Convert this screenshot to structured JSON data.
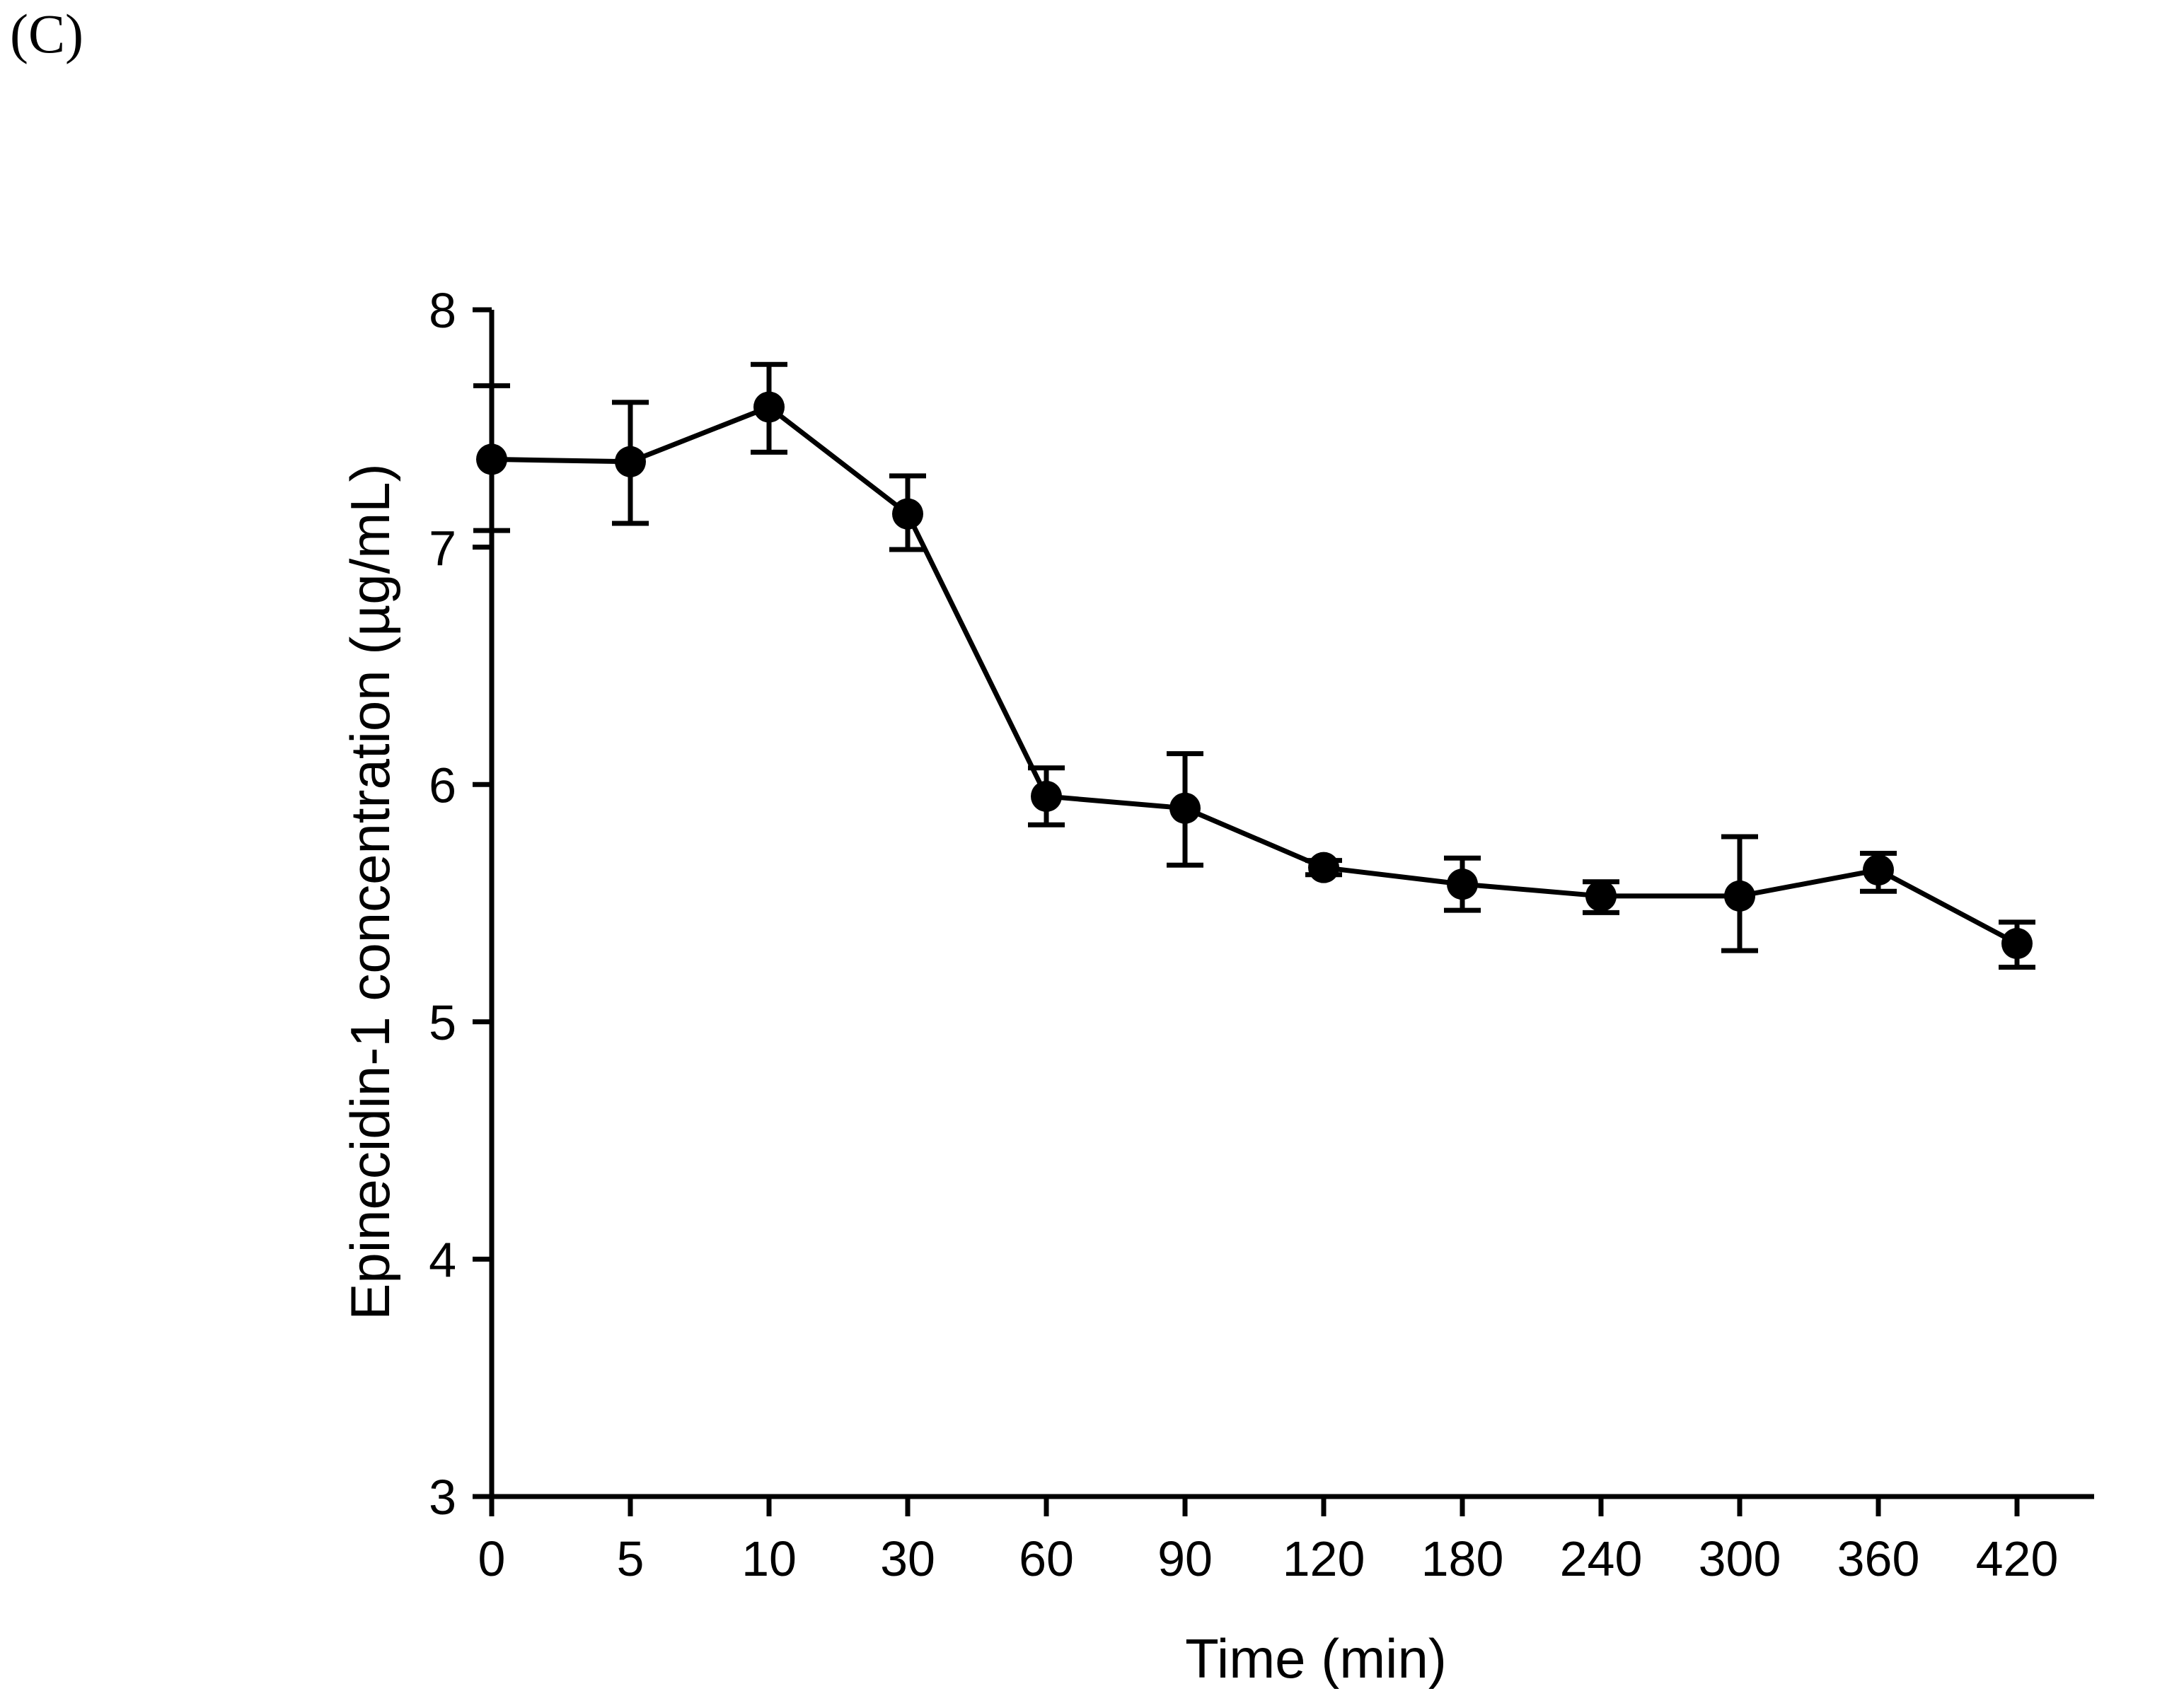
{
  "panel_label": "(C)",
  "colors": {
    "foreground": "#000000",
    "background": "#ffffff"
  },
  "chart_data": {
    "type": "line",
    "title": "",
    "xlabel": "Time (min)",
    "ylabel": "Epinecidin-1 concentration (µg/mL)",
    "x_tick_labels": [
      "0",
      "5",
      "10",
      "30",
      "60",
      "90",
      "120",
      "180",
      "240",
      "300",
      "360",
      "420"
    ],
    "categories": [
      0,
      5,
      10,
      30,
      60,
      90,
      120,
      180,
      240,
      300,
      360,
      420
    ],
    "series": [
      {
        "name": "Epinecidin-1 concentration",
        "marker": "filled-circle",
        "color": "#000000",
        "values": [
          7.37,
          7.36,
          7.59,
          7.14,
          5.95,
          5.9,
          5.65,
          5.58,
          5.53,
          5.53,
          5.64,
          5.33
        ],
        "error_up": [
          0.31,
          0.25,
          0.18,
          0.16,
          0.12,
          0.23,
          0.03,
          0.11,
          0.06,
          0.25,
          0.07,
          0.09
        ],
        "error_down": [
          0.3,
          0.26,
          0.19,
          0.15,
          0.12,
          0.24,
          0.03,
          0.11,
          0.07,
          0.23,
          0.09,
          0.1
        ]
      }
    ],
    "y_ticks": [
      3,
      4,
      5,
      6,
      7,
      8
    ],
    "ylim": [
      3,
      8
    ],
    "x_axis_categorical": true,
    "grid": false,
    "legend": false
  }
}
